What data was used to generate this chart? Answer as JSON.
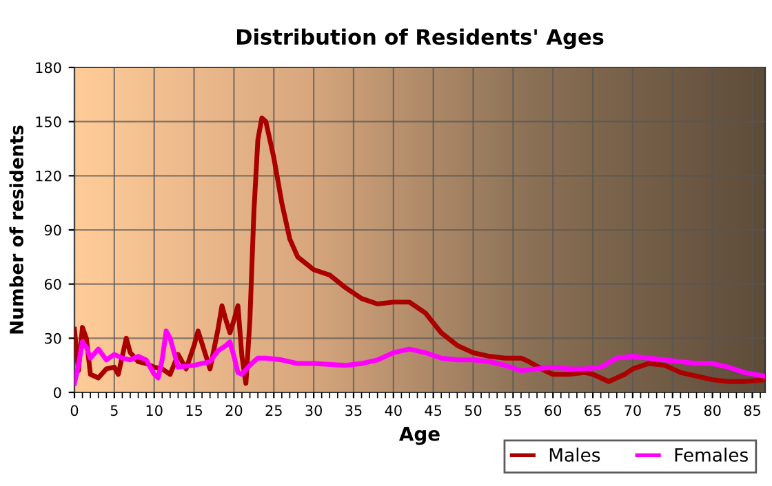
{
  "chart_data": {
    "type": "line",
    "title": "Distribution of Residents' Ages",
    "xlabel": "Age",
    "ylabel": "Number of residents",
    "xlim": [
      0,
      86.6
    ],
    "xticks": [
      0,
      5,
      10,
      15,
      20,
      25,
      30,
      35,
      40,
      45,
      50,
      55,
      60,
      65,
      70,
      75,
      80,
      85
    ],
    "ylim": [
      0,
      180
    ],
    "yticks": [
      0,
      30,
      60,
      90,
      120,
      150,
      180
    ],
    "grid": true,
    "legend": "bottom right",
    "line_style": "solid",
    "marker": "none",
    "series": [
      {
        "name": "Males",
        "color": "#aa0000",
        "x": [
          0,
          0.5,
          1,
          1.5,
          2,
          3,
          4,
          5,
          5.5,
          6,
          6.5,
          7,
          8,
          9,
          10,
          11,
          12,
          13,
          14,
          15,
          15.5,
          16.5,
          17,
          18,
          18.5,
          19,
          19.5,
          20,
          20.5,
          21,
          21.5,
          22,
          22.5,
          23,
          23.5,
          24,
          25,
          26,
          27,
          28,
          30,
          32,
          34,
          36,
          38,
          40,
          42,
          44,
          46,
          48,
          50,
          52,
          54,
          56,
          57,
          59,
          60,
          62,
          64,
          65,
          66,
          67,
          69,
          70,
          72,
          74,
          76,
          78,
          80,
          82,
          84,
          86.6
        ],
        "values": [
          35,
          12,
          36,
          30,
          10,
          8,
          13,
          14,
          10,
          20,
          30,
          22,
          17,
          16,
          14,
          13,
          10,
          21,
          13,
          26,
          34,
          20,
          13,
          35,
          48,
          40,
          33,
          40,
          48,
          20,
          5,
          40,
          100,
          140,
          152,
          150,
          130,
          105,
          85,
          75,
          68,
          65,
          58,
          52,
          49,
          50,
          50,
          44,
          33,
          26,
          22,
          20,
          19,
          19,
          17,
          12,
          10,
          10,
          11,
          10,
          8,
          6,
          10,
          13,
          16,
          15,
          11,
          9,
          7,
          6,
          6,
          7
        ]
      },
      {
        "name": "Females",
        "color": "#ff00ff",
        "x": [
          0,
          0.5,
          1,
          1.5,
          2,
          3,
          4,
          5,
          6,
          7,
          8,
          9,
          10,
          10.5,
          11,
          11.5,
          12,
          13,
          15,
          17,
          18,
          19,
          19.5,
          20,
          20.5,
          21,
          22,
          23,
          24,
          26,
          28,
          30,
          34,
          36,
          38,
          40,
          42,
          44,
          46,
          48,
          50,
          52,
          54,
          56,
          58,
          60,
          62,
          64,
          66,
          68,
          70,
          72,
          74,
          76,
          78,
          80,
          82,
          84,
          86.6
        ],
        "values": [
          5,
          15,
          28,
          25,
          19,
          24,
          18,
          21,
          19,
          18,
          20,
          18,
          10,
          8,
          18,
          34,
          30,
          14,
          15,
          17,
          23,
          26,
          28,
          20,
          11,
          10,
          15,
          19,
          19,
          18,
          16,
          16,
          15,
          16,
          18,
          22,
          24,
          22,
          19,
          18,
          18,
          17,
          15,
          12,
          13,
          14,
          13,
          13,
          14,
          19,
          20,
          19,
          18,
          17,
          16,
          16,
          14,
          11,
          9
        ]
      }
    ]
  }
}
